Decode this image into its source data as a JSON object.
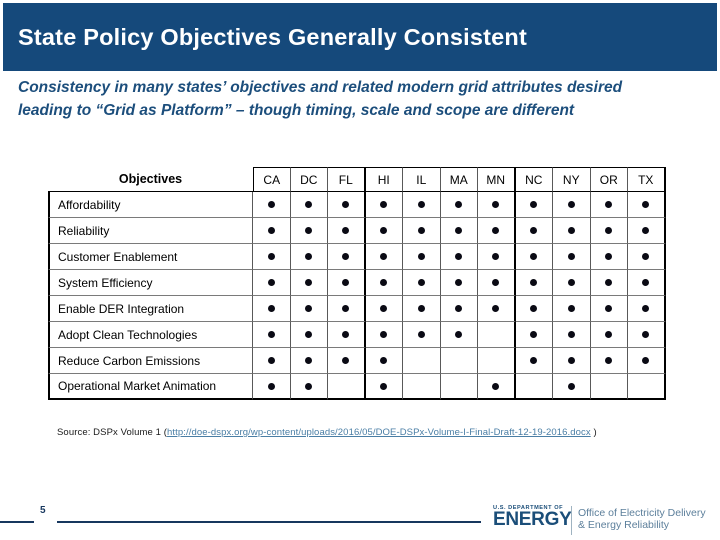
{
  "slide": {
    "title": "State Policy Objectives Generally Consistent",
    "subtitle_line1": "Consistency in many states’ objectives and related modern grid attributes desired",
    "subtitle_line2": "leading to “Grid as Platform” –  though timing, scale and scope are different"
  },
  "table": {
    "header_label": "Objectives",
    "columns": [
      "CA",
      "DC",
      "FL",
      "HI",
      "IL",
      "MA",
      "MN",
      "NC",
      "NY",
      "OR",
      "TX"
    ],
    "group_divider_after": [
      "FL",
      "MN"
    ],
    "rows": [
      {
        "label": "Affordability",
        "dots": [
          1,
          1,
          1,
          1,
          1,
          1,
          1,
          1,
          1,
          1,
          1
        ]
      },
      {
        "label": "Reliability",
        "dots": [
          1,
          1,
          1,
          1,
          1,
          1,
          1,
          1,
          1,
          1,
          1
        ]
      },
      {
        "label": "Customer Enablement",
        "dots": [
          1,
          1,
          1,
          1,
          1,
          1,
          1,
          1,
          1,
          1,
          1
        ]
      },
      {
        "label": "System Efficiency",
        "dots": [
          1,
          1,
          1,
          1,
          1,
          1,
          1,
          1,
          1,
          1,
          1
        ]
      },
      {
        "label": "Enable DER Integration",
        "dots": [
          1,
          1,
          1,
          1,
          1,
          1,
          1,
          1,
          1,
          1,
          1
        ]
      },
      {
        "label": "Adopt Clean Technologies",
        "dots": [
          1,
          1,
          1,
          1,
          1,
          1,
          0,
          1,
          1,
          1,
          1
        ]
      },
      {
        "label": "Reduce Carbon Emissions",
        "dots": [
          1,
          1,
          1,
          1,
          0,
          0,
          0,
          1,
          1,
          1,
          1
        ]
      },
      {
        "label": "Operational Market Animation",
        "dots": [
          1,
          1,
          0,
          1,
          0,
          0,
          1,
          0,
          1,
          0,
          0
        ]
      }
    ]
  },
  "chart_data": {
    "type": "table",
    "title": "State Policy Objectives Generally Consistent",
    "categories": [
      "CA",
      "DC",
      "FL",
      "HI",
      "IL",
      "MA",
      "MN",
      "NC",
      "NY",
      "OR",
      "TX"
    ],
    "series": [
      {
        "name": "Affordability",
        "values": [
          1,
          1,
          1,
          1,
          1,
          1,
          1,
          1,
          1,
          1,
          1
        ]
      },
      {
        "name": "Reliability",
        "values": [
          1,
          1,
          1,
          1,
          1,
          1,
          1,
          1,
          1,
          1,
          1
        ]
      },
      {
        "name": "Customer Enablement",
        "values": [
          1,
          1,
          1,
          1,
          1,
          1,
          1,
          1,
          1,
          1,
          1
        ]
      },
      {
        "name": "System Efficiency",
        "values": [
          1,
          1,
          1,
          1,
          1,
          1,
          1,
          1,
          1,
          1,
          1
        ]
      },
      {
        "name": "Enable DER Integration",
        "values": [
          1,
          1,
          1,
          1,
          1,
          1,
          1,
          1,
          1,
          1,
          1
        ]
      },
      {
        "name": "Adopt Clean Technologies",
        "values": [
          1,
          1,
          1,
          1,
          1,
          1,
          0,
          1,
          1,
          1,
          1
        ]
      },
      {
        "name": "Reduce Carbon Emissions",
        "values": [
          1,
          1,
          1,
          1,
          0,
          0,
          0,
          1,
          1,
          1,
          1
        ]
      },
      {
        "name": "Operational Market Animation",
        "values": [
          1,
          1,
          0,
          1,
          0,
          0,
          1,
          0,
          1,
          0,
          0
        ]
      }
    ]
  },
  "source": {
    "prefix": "Source: DSPx Volume 1 (",
    "link": "http://doe-dspx.org/wp-content/uploads/2016/05/DOE-DSPx-Volume-I-Final-Draft-12-19-2016.docx",
    "suffix": " )"
  },
  "footer": {
    "page_number": "5",
    "logo": {
      "dept": "U.S. DEPARTMENT OF",
      "name": "ENERGY",
      "office_line1": "Office of Electricity Delivery",
      "office_line2": "& Energy Reliability"
    }
  },
  "colors": {
    "title_bar": "#15497B",
    "subtitle_text": "#1C4E7C",
    "link": "#4A7EA5",
    "footer_line": "#17375E",
    "logo_navy": "#1B4E79",
    "office_text": "#5C7F9B"
  }
}
